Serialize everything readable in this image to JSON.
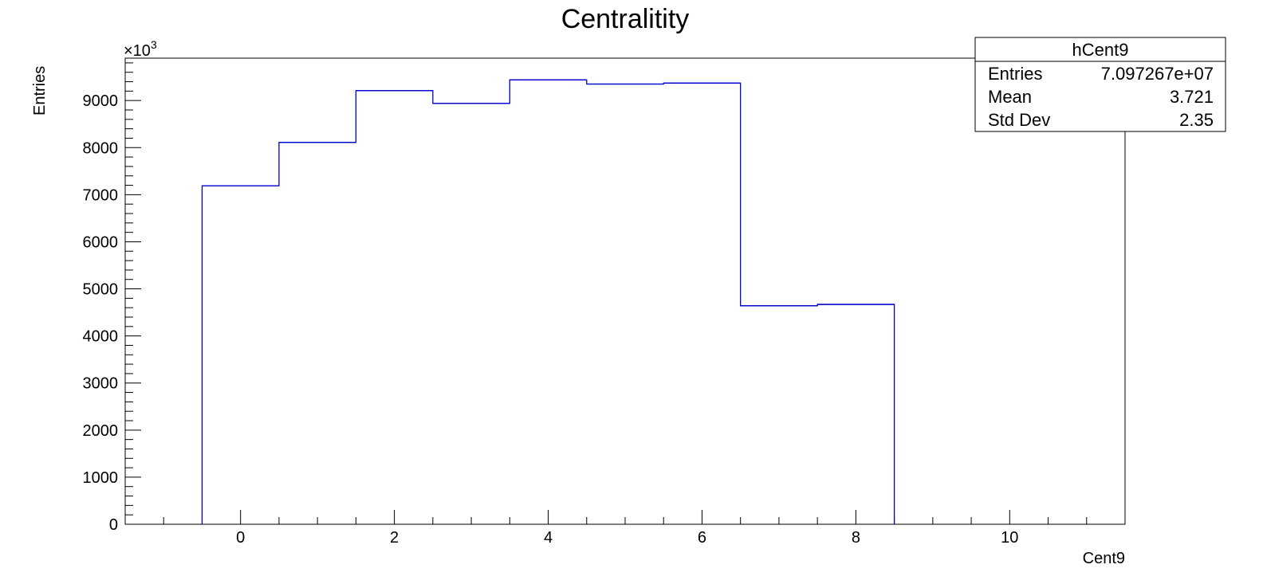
{
  "chart_data": {
    "type": "bar",
    "title": "Centralitity",
    "xlabel": "Cent9",
    "ylabel": "Entries",
    "y_exponent_label": "×10",
    "y_exponent": "3",
    "xlim": [
      -1.5,
      11.5
    ],
    "ylim": [
      0,
      9900
    ],
    "xticks": [
      0,
      2,
      4,
      6,
      8,
      10
    ],
    "yticks": [
      0,
      1000,
      2000,
      3000,
      4000,
      5000,
      6000,
      7000,
      8000,
      9000
    ],
    "bins": [
      {
        "low": -0.5,
        "high": 0.5,
        "value": 7190
      },
      {
        "low": 0.5,
        "high": 1.5,
        "value": 8110
      },
      {
        "low": 1.5,
        "high": 2.5,
        "value": 9210
      },
      {
        "low": 2.5,
        "high": 3.5,
        "value": 8940
      },
      {
        "low": 3.5,
        "high": 4.5,
        "value": 9440
      },
      {
        "low": 4.5,
        "high": 5.5,
        "value": 9350
      },
      {
        "low": 5.5,
        "high": 6.5,
        "value": 9370
      },
      {
        "low": 6.5,
        "high": 7.5,
        "value": 4640
      },
      {
        "low": 7.5,
        "high": 8.5,
        "value": 4670
      }
    ],
    "line_color": "#0000cc",
    "grid": false,
    "legend_position": "top-right",
    "stats_box": {
      "name": "hCent9",
      "rows": [
        {
          "label": "Entries",
          "value": "7.097267e+07"
        },
        {
          "label": "Mean",
          "value": "3.721"
        },
        {
          "label": "Std Dev",
          "value": "2.35"
        }
      ]
    }
  }
}
